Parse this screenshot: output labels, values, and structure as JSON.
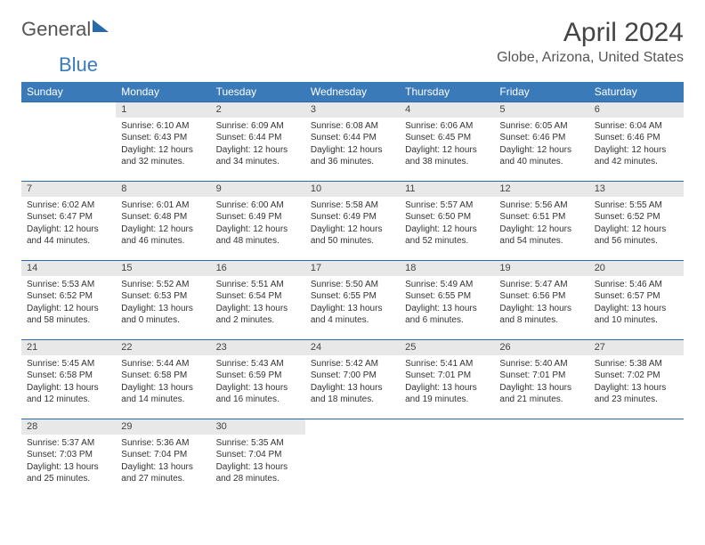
{
  "logo": {
    "part1": "General",
    "part2": "Blue"
  },
  "title": "April 2024",
  "location": "Globe, Arizona, United States",
  "dayNames": [
    "Sunday",
    "Monday",
    "Tuesday",
    "Wednesday",
    "Thursday",
    "Friday",
    "Saturday"
  ],
  "colors": {
    "headerBg": "#3b7ab8",
    "headerText": "#ffffff",
    "dayNumBg": "#e8e8e8",
    "borderTop": "#2a6aa8",
    "bodyText": "#333333"
  },
  "typography": {
    "titleFontSize": 30,
    "locationFontSize": 16,
    "dayHeaderFontSize": 12,
    "dayNumFontSize": 11,
    "detailFontSize": 10
  },
  "weeks": [
    {
      "nums": [
        "",
        "1",
        "2",
        "3",
        "4",
        "5",
        "6"
      ],
      "details": [
        null,
        {
          "sunrise": "Sunrise: 6:10 AM",
          "sunset": "Sunset: 6:43 PM",
          "daylight": "Daylight: 12 hours and 32 minutes."
        },
        {
          "sunrise": "Sunrise: 6:09 AM",
          "sunset": "Sunset: 6:44 PM",
          "daylight": "Daylight: 12 hours and 34 minutes."
        },
        {
          "sunrise": "Sunrise: 6:08 AM",
          "sunset": "Sunset: 6:44 PM",
          "daylight": "Daylight: 12 hours and 36 minutes."
        },
        {
          "sunrise": "Sunrise: 6:06 AM",
          "sunset": "Sunset: 6:45 PM",
          "daylight": "Daylight: 12 hours and 38 minutes."
        },
        {
          "sunrise": "Sunrise: 6:05 AM",
          "sunset": "Sunset: 6:46 PM",
          "daylight": "Daylight: 12 hours and 40 minutes."
        },
        {
          "sunrise": "Sunrise: 6:04 AM",
          "sunset": "Sunset: 6:46 PM",
          "daylight": "Daylight: 12 hours and 42 minutes."
        }
      ]
    },
    {
      "nums": [
        "7",
        "8",
        "9",
        "10",
        "11",
        "12",
        "13"
      ],
      "details": [
        {
          "sunrise": "Sunrise: 6:02 AM",
          "sunset": "Sunset: 6:47 PM",
          "daylight": "Daylight: 12 hours and 44 minutes."
        },
        {
          "sunrise": "Sunrise: 6:01 AM",
          "sunset": "Sunset: 6:48 PM",
          "daylight": "Daylight: 12 hours and 46 minutes."
        },
        {
          "sunrise": "Sunrise: 6:00 AM",
          "sunset": "Sunset: 6:49 PM",
          "daylight": "Daylight: 12 hours and 48 minutes."
        },
        {
          "sunrise": "Sunrise: 5:58 AM",
          "sunset": "Sunset: 6:49 PM",
          "daylight": "Daylight: 12 hours and 50 minutes."
        },
        {
          "sunrise": "Sunrise: 5:57 AM",
          "sunset": "Sunset: 6:50 PM",
          "daylight": "Daylight: 12 hours and 52 minutes."
        },
        {
          "sunrise": "Sunrise: 5:56 AM",
          "sunset": "Sunset: 6:51 PM",
          "daylight": "Daylight: 12 hours and 54 minutes."
        },
        {
          "sunrise": "Sunrise: 5:55 AM",
          "sunset": "Sunset: 6:52 PM",
          "daylight": "Daylight: 12 hours and 56 minutes."
        }
      ]
    },
    {
      "nums": [
        "14",
        "15",
        "16",
        "17",
        "18",
        "19",
        "20"
      ],
      "details": [
        {
          "sunrise": "Sunrise: 5:53 AM",
          "sunset": "Sunset: 6:52 PM",
          "daylight": "Daylight: 12 hours and 58 minutes."
        },
        {
          "sunrise": "Sunrise: 5:52 AM",
          "sunset": "Sunset: 6:53 PM",
          "daylight": "Daylight: 13 hours and 0 minutes."
        },
        {
          "sunrise": "Sunrise: 5:51 AM",
          "sunset": "Sunset: 6:54 PM",
          "daylight": "Daylight: 13 hours and 2 minutes."
        },
        {
          "sunrise": "Sunrise: 5:50 AM",
          "sunset": "Sunset: 6:55 PM",
          "daylight": "Daylight: 13 hours and 4 minutes."
        },
        {
          "sunrise": "Sunrise: 5:49 AM",
          "sunset": "Sunset: 6:55 PM",
          "daylight": "Daylight: 13 hours and 6 minutes."
        },
        {
          "sunrise": "Sunrise: 5:47 AM",
          "sunset": "Sunset: 6:56 PM",
          "daylight": "Daylight: 13 hours and 8 minutes."
        },
        {
          "sunrise": "Sunrise: 5:46 AM",
          "sunset": "Sunset: 6:57 PM",
          "daylight": "Daylight: 13 hours and 10 minutes."
        }
      ]
    },
    {
      "nums": [
        "21",
        "22",
        "23",
        "24",
        "25",
        "26",
        "27"
      ],
      "details": [
        {
          "sunrise": "Sunrise: 5:45 AM",
          "sunset": "Sunset: 6:58 PM",
          "daylight": "Daylight: 13 hours and 12 minutes."
        },
        {
          "sunrise": "Sunrise: 5:44 AM",
          "sunset": "Sunset: 6:58 PM",
          "daylight": "Daylight: 13 hours and 14 minutes."
        },
        {
          "sunrise": "Sunrise: 5:43 AM",
          "sunset": "Sunset: 6:59 PM",
          "daylight": "Daylight: 13 hours and 16 minutes."
        },
        {
          "sunrise": "Sunrise: 5:42 AM",
          "sunset": "Sunset: 7:00 PM",
          "daylight": "Daylight: 13 hours and 18 minutes."
        },
        {
          "sunrise": "Sunrise: 5:41 AM",
          "sunset": "Sunset: 7:01 PM",
          "daylight": "Daylight: 13 hours and 19 minutes."
        },
        {
          "sunrise": "Sunrise: 5:40 AM",
          "sunset": "Sunset: 7:01 PM",
          "daylight": "Daylight: 13 hours and 21 minutes."
        },
        {
          "sunrise": "Sunrise: 5:38 AM",
          "sunset": "Sunset: 7:02 PM",
          "daylight": "Daylight: 13 hours and 23 minutes."
        }
      ]
    },
    {
      "nums": [
        "28",
        "29",
        "30",
        "",
        "",
        "",
        ""
      ],
      "details": [
        {
          "sunrise": "Sunrise: 5:37 AM",
          "sunset": "Sunset: 7:03 PM",
          "daylight": "Daylight: 13 hours and 25 minutes."
        },
        {
          "sunrise": "Sunrise: 5:36 AM",
          "sunset": "Sunset: 7:04 PM",
          "daylight": "Daylight: 13 hours and 27 minutes."
        },
        {
          "sunrise": "Sunrise: 5:35 AM",
          "sunset": "Sunset: 7:04 PM",
          "daylight": "Daylight: 13 hours and 28 minutes."
        },
        null,
        null,
        null,
        null
      ]
    }
  ]
}
